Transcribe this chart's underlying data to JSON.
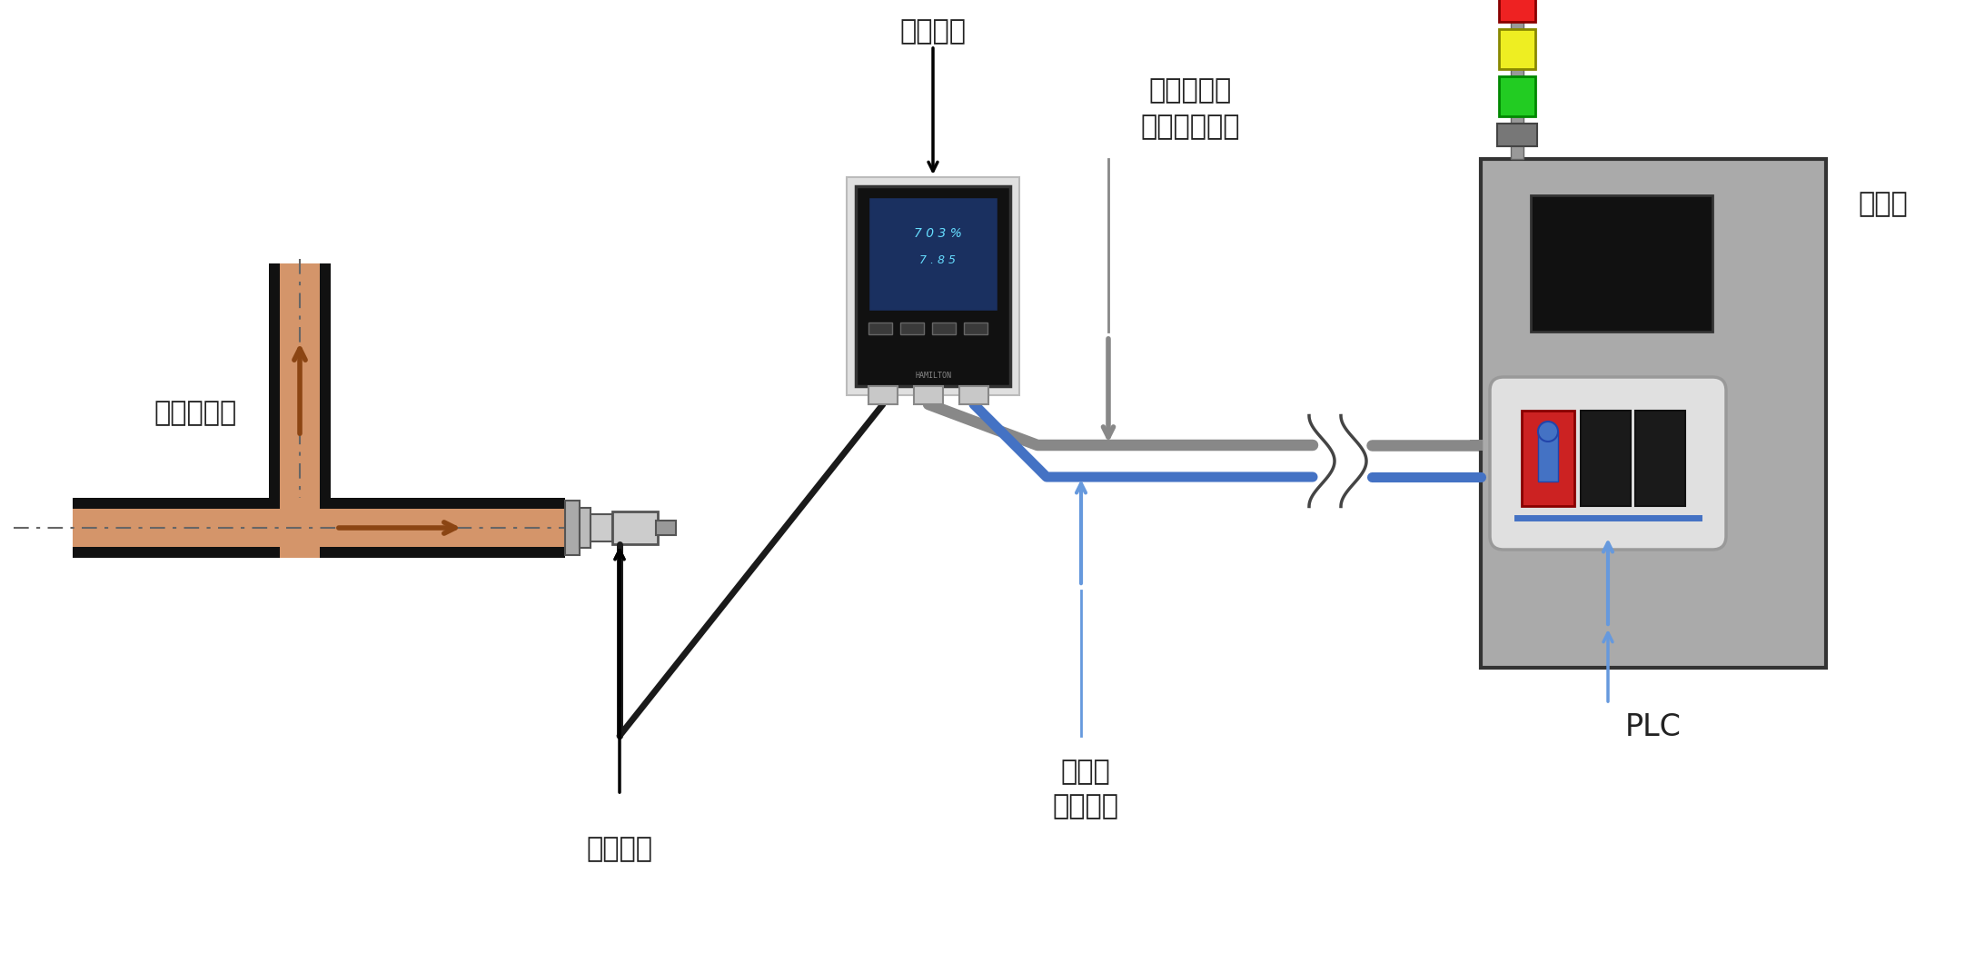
{
  "bg_color": "#ffffff",
  "pipe_fill": "#d4956a",
  "pipe_border": "#111111",
  "pipe_arrow_color": "#8B4513",
  "cable_blue": "#4472C4",
  "cable_blue_light": "#6699dd",
  "cable_gray": "#888888",
  "cable_black": "#1a1a1a",
  "plc_body": "#aaaaaa",
  "plc_border": "#333333",
  "monitor_body": "#111111",
  "monitor_frame": "#dddddd",
  "monitor_screen_bg": "#1a3060",
  "label_monitor": "モニター",
  "label_power_l1": "モニター用",
  "label_power_l2": "電源ケーブル",
  "label_control": "制御盤",
  "label_pipe": "プロセス管",
  "label_sensor": "センサー",
  "label_trans_l1": "伝送用",
  "label_trans_l2": "ケーブル",
  "label_plc": "PLC",
  "fs": 22
}
